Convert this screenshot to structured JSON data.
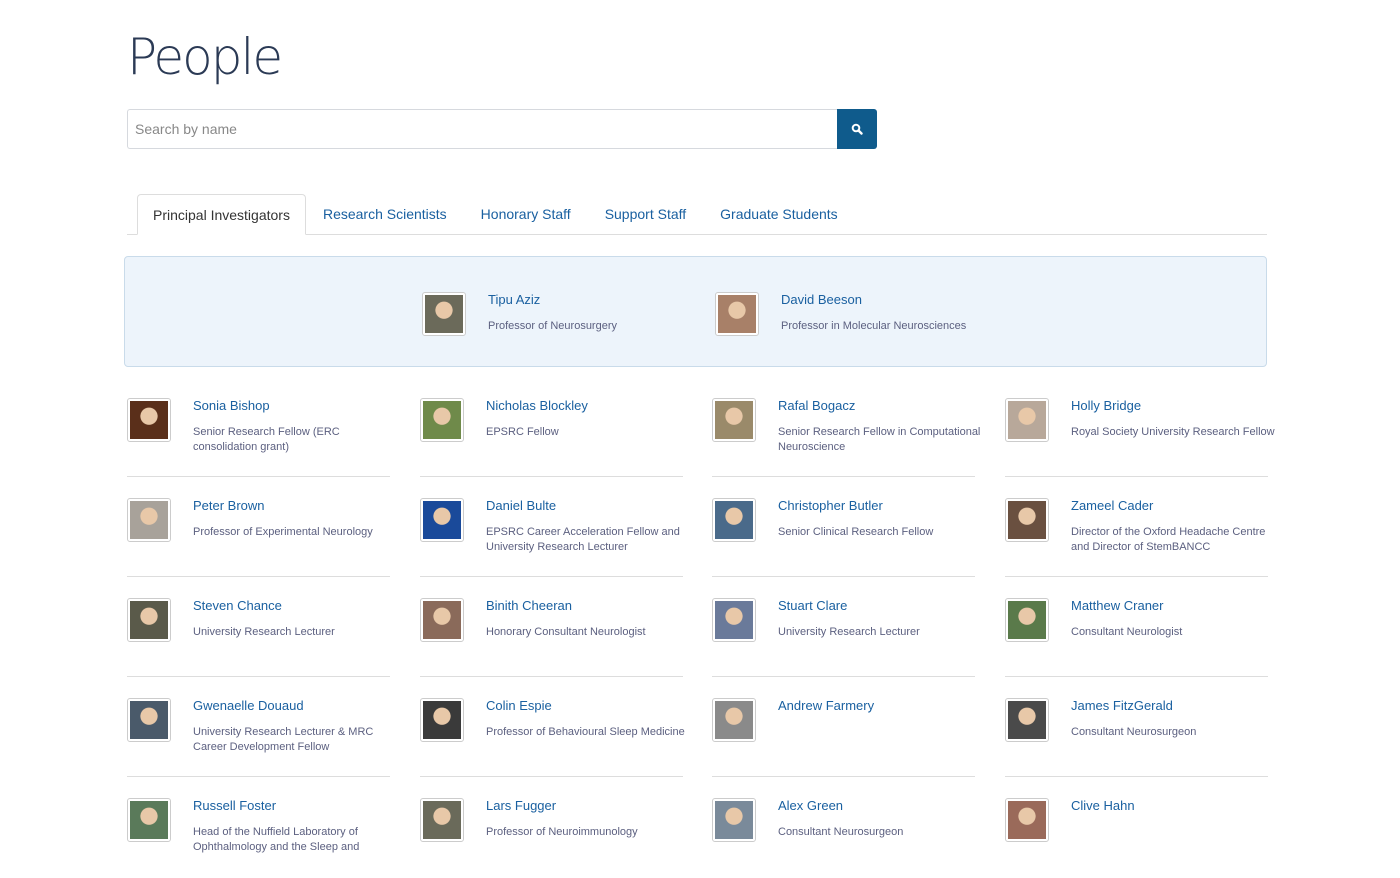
{
  "page_title": "People",
  "search": {
    "placeholder": "Search by name",
    "button_icon": "search-icon"
  },
  "tabs": [
    {
      "label": "Principal Investigators",
      "active": true
    },
    {
      "label": "Research Scientists"
    },
    {
      "label": "Honorary Staff"
    },
    {
      "label": "Support Staff"
    },
    {
      "label": "Graduate Students"
    }
  ],
  "featured": [
    {
      "name": "Tipu Aziz",
      "title": "Professor of Neurosurgery",
      "color": "#6b6a5a"
    },
    {
      "name": "David Beeson",
      "title": "Professor in Molecular Neurosciences",
      "color": "#a88068"
    }
  ],
  "people": [
    {
      "name": "Sonia Bishop",
      "title": "Senior Research Fellow (ERC consolidation grant)",
      "color": "#5a2f1a"
    },
    {
      "name": "Nicholas Blockley",
      "title": "EPSRC Fellow",
      "color": "#6f8a4a"
    },
    {
      "name": "Rafal Bogacz",
      "title": "Senior Research Fellow in Computational Neuroscience",
      "color": "#9a8a6a"
    },
    {
      "name": "Holly Bridge",
      "title": "Royal Society University Research Fellow",
      "color": "#b8a89a"
    },
    {
      "name": "Peter Brown",
      "title": "Professor of Experimental Neurology",
      "color": "#a8a29a"
    },
    {
      "name": "Daniel Bulte",
      "title": "EPSRC Career Acceleration Fellow and University Research Lecturer",
      "color": "#1a4a9a"
    },
    {
      "name": "Christopher Butler",
      "title": "Senior Clinical Research Fellow",
      "color": "#4a6a8a"
    },
    {
      "name": "Zameel Cader",
      "title": "Director of the Oxford Headache Centre and Director of StemBANCC",
      "color": "#6a5040"
    },
    {
      "name": "Steven Chance",
      "title": "University Research Lecturer",
      "color": "#5a5a4a"
    },
    {
      "name": "Binith Cheeran",
      "title": "Honorary Consultant Neurologist",
      "color": "#8a6a5a"
    },
    {
      "name": "Stuart Clare",
      "title": "University Research Lecturer",
      "color": "#6a7a9a"
    },
    {
      "name": "Matthew Craner",
      "title": "Consultant Neurologist",
      "color": "#5a7a4a"
    },
    {
      "name": "Gwenaelle Douaud",
      "title": "University Research Lecturer & MRC Career Development Fellow",
      "color": "#4a5a6a"
    },
    {
      "name": "Colin Espie",
      "title": "Professor of Behavioural Sleep Medicine",
      "color": "#3a3a3a"
    },
    {
      "name": "Andrew Farmery",
      "title": "",
      "color": "#8a8a8a"
    },
    {
      "name": "James FitzGerald",
      "title": "Consultant Neurosurgeon",
      "color": "#4a4a4a"
    },
    {
      "name": "Russell Foster",
      "title": "Head of the Nuffield Laboratory of Ophthalmology and the Sleep and",
      "color": "#5a7a5a"
    },
    {
      "name": "Lars Fugger",
      "title": "Professor of Neuroimmunology",
      "color": "#6a6a5a"
    },
    {
      "name": "Alex Green",
      "title": "Consultant Neurosurgeon",
      "color": "#7a8a9a"
    },
    {
      "name": "Clive Hahn",
      "title": "",
      "color": "#9a6a5a"
    }
  ],
  "colors": {
    "link": "#1a60a0",
    "accent": "#0f5b8c",
    "featured_bg": "#edf4fb"
  }
}
